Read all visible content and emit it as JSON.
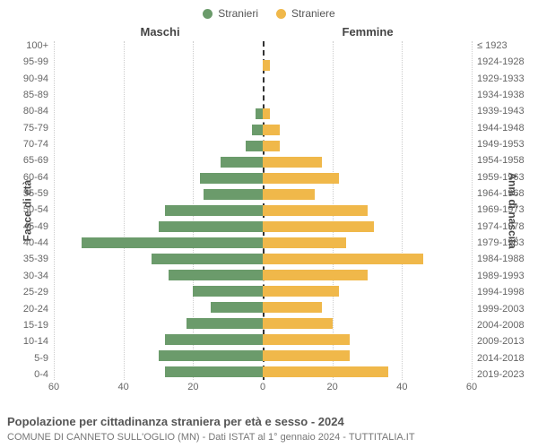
{
  "legend": {
    "male_label": "Stranieri",
    "female_label": "Straniere"
  },
  "headers": {
    "male": "Maschi",
    "female": "Femmine"
  },
  "axis_titles": {
    "left": "Fasce di età",
    "right": "Anni di nascita"
  },
  "colors": {
    "male": "#6b9b6b",
    "female": "#f0b84a",
    "background": "#ffffff",
    "grid": "#cccccc",
    "centerline": "#333333",
    "text": "#555555"
  },
  "xaxis": {
    "max": 60,
    "ticks": [
      60,
      40,
      20,
      0,
      20,
      40,
      60
    ]
  },
  "fontsize": {
    "ylabel": 11,
    "xtick": 11,
    "legend": 12,
    "header": 13,
    "axis_title": 12,
    "caption": 13,
    "subcaption": 11
  },
  "rows": [
    {
      "age": "100+",
      "birth": "≤ 1923",
      "m": 0,
      "f": 0
    },
    {
      "age": "95-99",
      "birth": "1924-1928",
      "m": 0,
      "f": 2
    },
    {
      "age": "90-94",
      "birth": "1929-1933",
      "m": 0,
      "f": 0
    },
    {
      "age": "85-89",
      "birth": "1934-1938",
      "m": 0,
      "f": 0
    },
    {
      "age": "80-84",
      "birth": "1939-1943",
      "m": 2,
      "f": 2
    },
    {
      "age": "75-79",
      "birth": "1944-1948",
      "m": 3,
      "f": 5
    },
    {
      "age": "70-74",
      "birth": "1949-1953",
      "m": 5,
      "f": 5
    },
    {
      "age": "65-69",
      "birth": "1954-1958",
      "m": 12,
      "f": 17
    },
    {
      "age": "60-64",
      "birth": "1959-1963",
      "m": 18,
      "f": 22
    },
    {
      "age": "55-59",
      "birth": "1964-1968",
      "m": 17,
      "f": 15
    },
    {
      "age": "50-54",
      "birth": "1969-1973",
      "m": 28,
      "f": 30
    },
    {
      "age": "45-49",
      "birth": "1974-1978",
      "m": 30,
      "f": 32
    },
    {
      "age": "40-44",
      "birth": "1979-1983",
      "m": 52,
      "f": 24
    },
    {
      "age": "35-39",
      "birth": "1984-1988",
      "m": 32,
      "f": 46
    },
    {
      "age": "30-34",
      "birth": "1989-1993",
      "m": 27,
      "f": 30
    },
    {
      "age": "25-29",
      "birth": "1994-1998",
      "m": 20,
      "f": 22
    },
    {
      "age": "20-24",
      "birth": "1999-2003",
      "m": 15,
      "f": 17
    },
    {
      "age": "15-19",
      "birth": "2004-2008",
      "m": 22,
      "f": 20
    },
    {
      "age": "10-14",
      "birth": "2009-2013",
      "m": 28,
      "f": 25
    },
    {
      "age": "5-9",
      "birth": "2014-2018",
      "m": 30,
      "f": 25
    },
    {
      "age": "0-4",
      "birth": "2019-2023",
      "m": 28,
      "f": 36
    }
  ],
  "caption": "Popolazione per cittadinanza straniera per età e sesso - 2024",
  "subcaption": "COMUNE DI CANNETO SULL'OGLIO (MN) - Dati ISTAT al 1° gennaio 2024 - TUTTITALIA.IT"
}
